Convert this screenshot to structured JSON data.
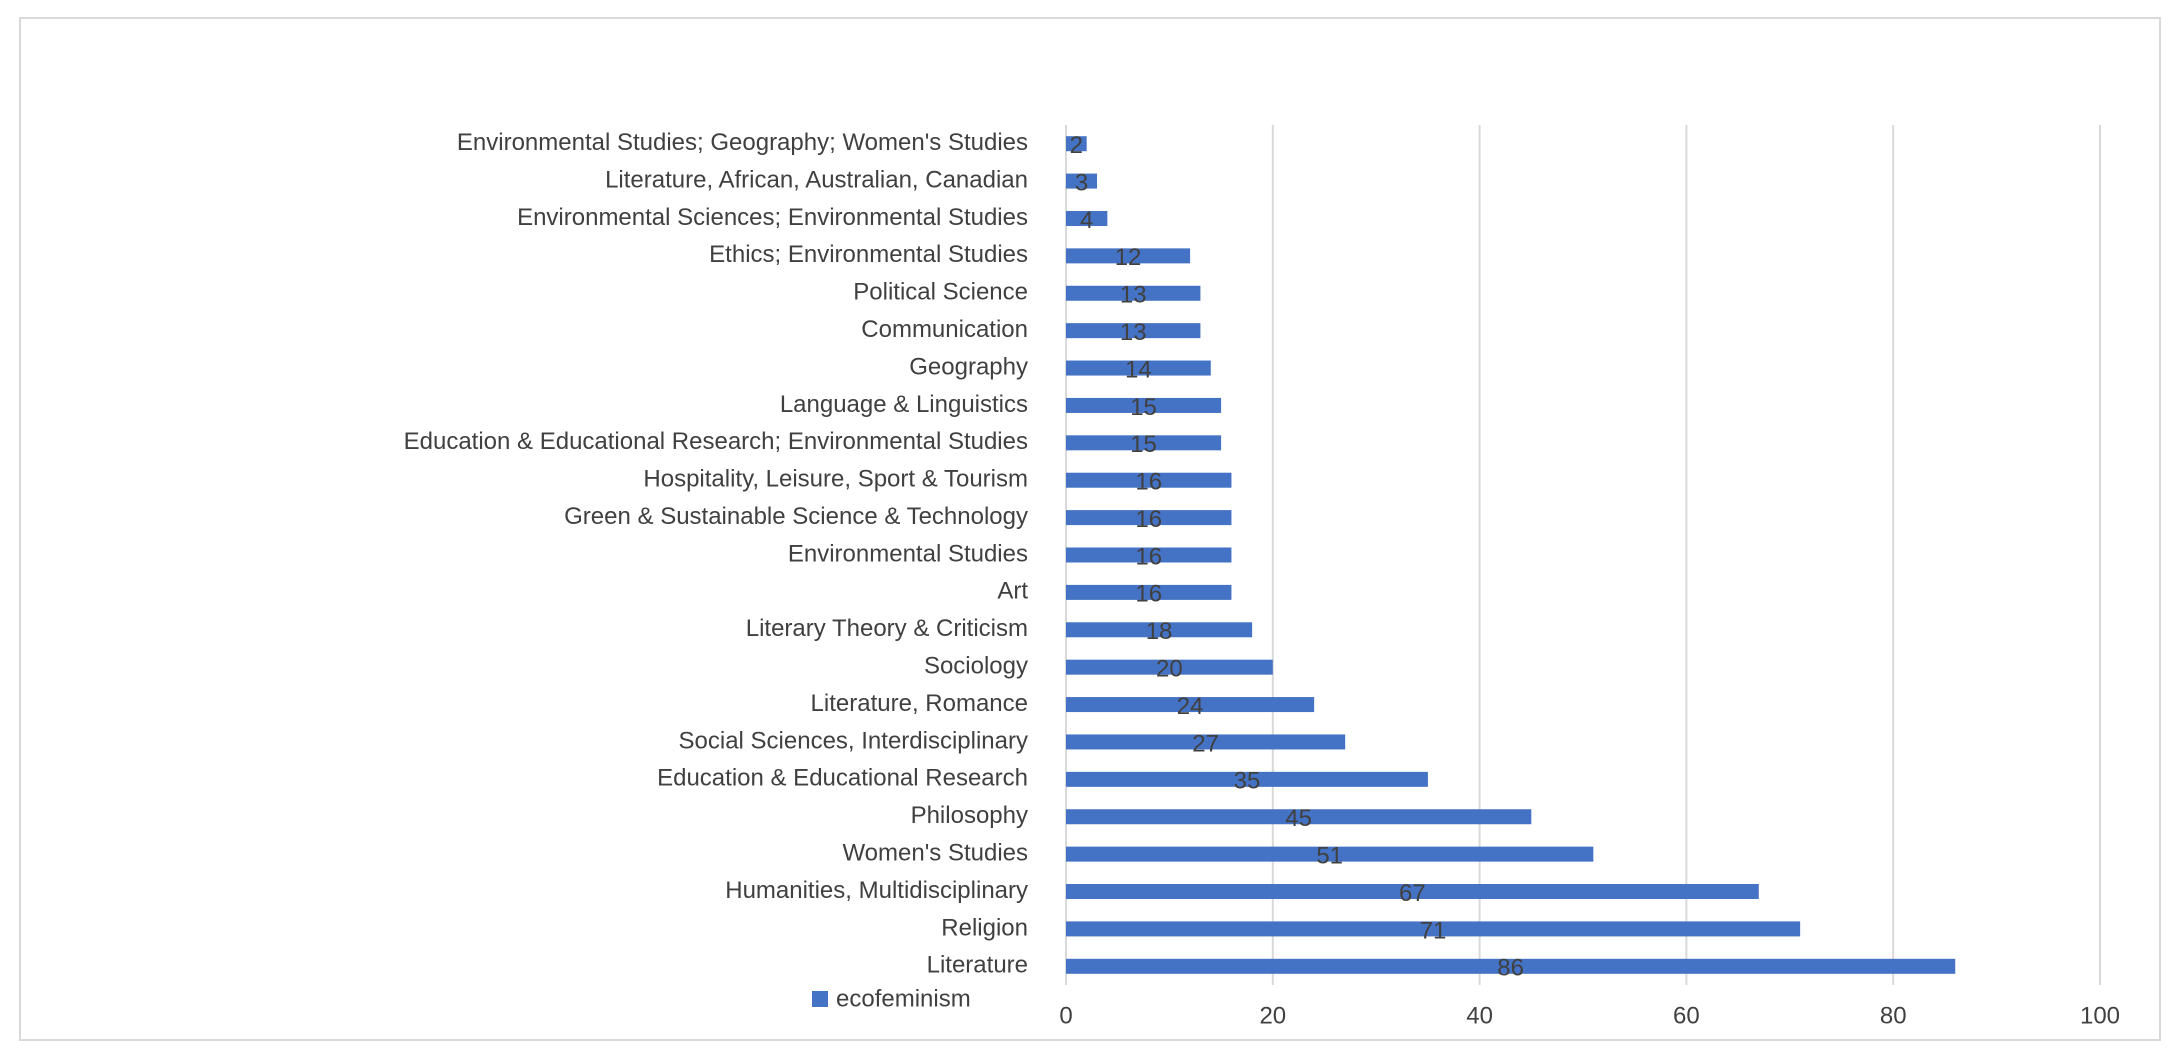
{
  "chart_data": {
    "type": "bar",
    "orientation": "horizontal",
    "categories": [
      "Environmental Studies; Geography; Women's Studies",
      "Literature, African, Australian, Canadian",
      "Environmental Sciences; Environmental Studies",
      "Ethics; Environmental Studies",
      "Political Science",
      "Communication",
      "Geography",
      "Language & Linguistics",
      "Education & Educational Research; Environmental Studies",
      "Hospitality, Leisure, Sport & Tourism",
      "Green & Sustainable Science & Technology",
      "Environmental Studies",
      "Art",
      "Literary Theory & Criticism",
      "Sociology",
      "Literature, Romance",
      "Social Sciences, Interdisciplinary",
      "Education & Educational Research",
      "Philosophy",
      "Women's Studies",
      "Humanities, Multidisciplinary",
      "Religion",
      "Literature"
    ],
    "series": [
      {
        "name": "ecofeminism",
        "color": "#4472c4",
        "values": [
          2,
          3,
          4,
          12,
          13,
          13,
          14,
          15,
          15,
          16,
          16,
          16,
          16,
          18,
          20,
          24,
          27,
          35,
          45,
          51,
          67,
          71,
          86
        ]
      }
    ],
    "xlim": [
      0,
      100
    ],
    "xticks": [
      0,
      20,
      40,
      60,
      80,
      100
    ],
    "grid": true,
    "data_labels": true,
    "legend": "bottom-left"
  }
}
